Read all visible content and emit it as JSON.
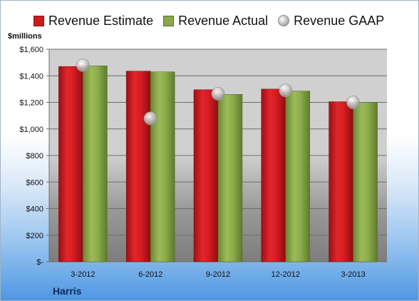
{
  "legend": {
    "estimate": "Revenue Estimate",
    "actual": "Revenue Actual",
    "gaap": "Revenue GAAP"
  },
  "unit_label": "$millions",
  "company": "Harris",
  "colors": {
    "estimate": "#cc1b1f",
    "actual": "#8aa84b",
    "gaap": "#bdbdbd"
  },
  "chart_data": {
    "type": "bar",
    "categories": [
      "3-2012",
      "6-2012",
      "9-2012",
      "12-2012",
      "3-2013"
    ],
    "series": [
      {
        "name": "Revenue Estimate",
        "type": "bar",
        "values": [
          1470,
          1435,
          1295,
          1300,
          1205
        ]
      },
      {
        "name": "Revenue Actual",
        "type": "bar",
        "values": [
          1475,
          1430,
          1260,
          1285,
          1200
        ]
      },
      {
        "name": "Revenue GAAP",
        "type": "scatter",
        "values": [
          1480,
          1080,
          1265,
          1290,
          1200
        ]
      }
    ],
    "ylabel": "$millions",
    "ylim": [
      0,
      1600
    ],
    "yticks": [
      0,
      200,
      400,
      600,
      800,
      1000,
      1200,
      1400,
      1600
    ],
    "ytick_labels": [
      "$-",
      "$200",
      "$400",
      "$600",
      "$800",
      "$1,000",
      "$1,200",
      "$1,400",
      "$1,600"
    ],
    "grid": true,
    "legend_position": "top"
  }
}
